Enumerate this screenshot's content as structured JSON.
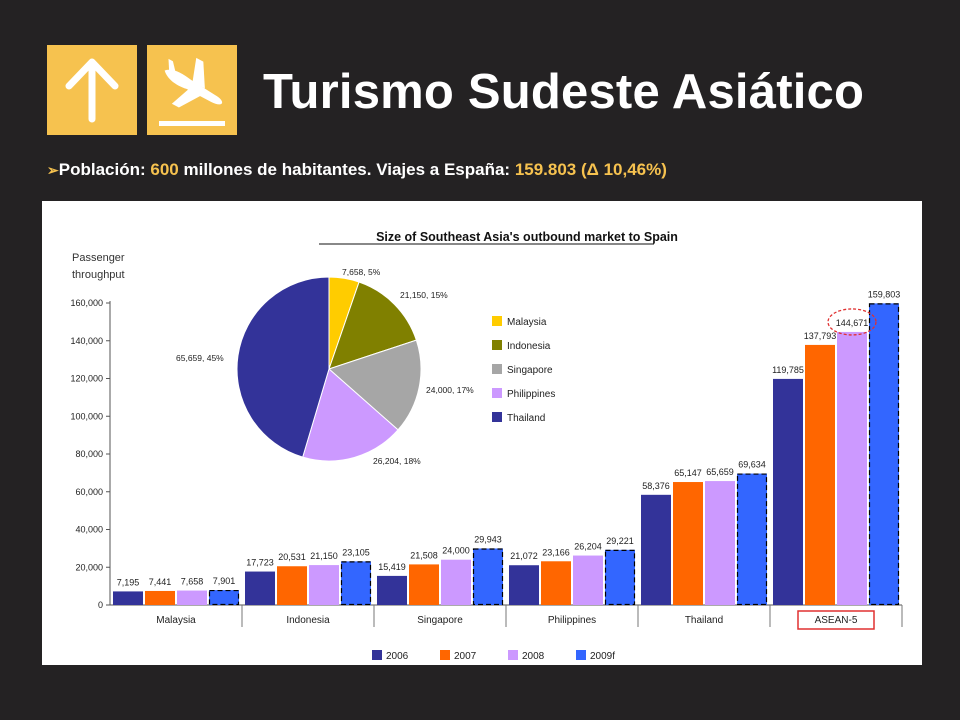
{
  "slide": {
    "title": "Turismo Sudeste Asiático",
    "subtitle": {
      "bullet": "➢",
      "label": "Población:",
      "population_value": "600",
      "population_rest": "millones de habitantes. Viajes a España:",
      "trips_value": "159.803 (Δ 10,46%)"
    },
    "icons": {
      "left": "arrow-up-icon",
      "right": "plane-landing-icon"
    },
    "colors": {
      "accent": "#f6c24f",
      "background": "#242223"
    }
  },
  "chart_data": [
    {
      "type": "bar",
      "title": "Size of Southeast Asia's outbound market to Spain",
      "ylabel": "Passenger throughput",
      "ylim": [
        0,
        160000
      ],
      "yticks": [
        "0",
        "20,000",
        "40,000",
        "60,000",
        "80,000",
        "100,000",
        "120,000",
        "140,000",
        "160,000"
      ],
      "categories": [
        "Malaysia",
        "Indonesia",
        "Singapore",
        "Philippines",
        "Thailand",
        "ASEAN-5"
      ],
      "series": [
        {
          "name": "2006",
          "color": "#333399",
          "values": [
            7195,
            17723,
            15419,
            21072,
            58376,
            119785
          ],
          "labels": [
            "7,195",
            "17,723",
            "15,419",
            "21,072",
            "58,376",
            "119,785"
          ]
        },
        {
          "name": "2007",
          "color": "#ff6600",
          "values": [
            7441,
            20531,
            21508,
            23166,
            65147,
            137793
          ],
          "labels": [
            "7,441",
            "20,531",
            "21,508",
            "23,166",
            "65,147",
            "137,793"
          ]
        },
        {
          "name": "2008",
          "color": "#cc99ff",
          "values": [
            7658,
            21150,
            24000,
            26204,
            65659,
            144671
          ],
          "labels": [
            "7,658",
            "21,150",
            "24,000",
            "26,204",
            "65,659",
            "144,671"
          ]
        },
        {
          "name": "2009f",
          "color": "#3366ff",
          "values": [
            7901,
            23105,
            29943,
            29221,
            69634,
            159803
          ],
          "labels": [
            "7,901",
            "23,105",
            "29,943",
            "29,221",
            "69,634",
            "159,803"
          ]
        }
      ],
      "highlighted_category": "ASEAN-5",
      "circled_label": "144,671",
      "grid": false,
      "legend": "bottom"
    },
    {
      "type": "pie",
      "slices": [
        {
          "name": "Malaysia",
          "value": 7658,
          "percent": 5,
          "label": "7,658, 5%",
          "color": "#ffcc00"
        },
        {
          "name": "Indonesia",
          "value": 21150,
          "percent": 15,
          "label": "21,150, 15%",
          "color": "#808000"
        },
        {
          "name": "Singapore",
          "value": 24000,
          "percent": 17,
          "label": "24,000, 17%",
          "color": "#a6a6a6"
        },
        {
          "name": "Philippines",
          "value": 26204,
          "percent": 18,
          "label": "26,204, 18%",
          "color": "#cc99ff"
        },
        {
          "name": "Thailand",
          "value": 65659,
          "percent": 45,
          "label": "65,659, 45%",
          "color": "#333399"
        }
      ],
      "legend": "right"
    }
  ]
}
